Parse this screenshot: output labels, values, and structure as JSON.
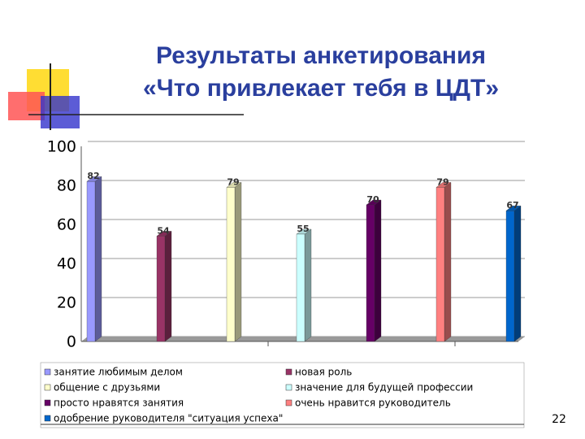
{
  "chart_data": {
    "type": "bar",
    "title_lines": [
      "Результаты анкетирования",
      "«Что привлекает тебя в ЦДТ»"
    ],
    "page_number": "22",
    "categories": [
      null
    ],
    "series": [
      {
        "name": "занятие любимым делом",
        "color": "#9999ff",
        "values": [
          82
        ]
      },
      {
        "name": "новая роль",
        "color": "#993366",
        "values": [
          54
        ]
      },
      {
        "name": "общение с друзьями",
        "color": "#ffffcc",
        "values": [
          79
        ]
      },
      {
        "name": "значение для будущей профессии",
        "color": "#ccffff",
        "values": [
          55
        ]
      },
      {
        "name": "просто нравятся занятия",
        "color": "#660066",
        "values": [
          70
        ]
      },
      {
        "name": "очень нравится руководитель",
        "color": "#ff8080",
        "values": [
          79
        ]
      },
      {
        "name": "одобрение руководителя \"ситуация успеха\"",
        "color": "#0066cc",
        "values": [
          67
        ]
      }
    ],
    "ylim": [
      0,
      100
    ],
    "yticks": [
      0,
      20,
      40,
      60,
      80,
      100
    ],
    "grid": true
  }
}
